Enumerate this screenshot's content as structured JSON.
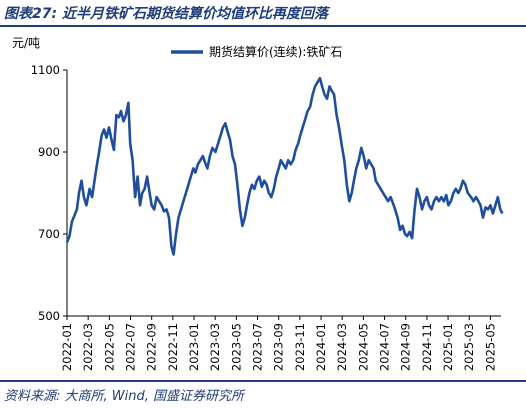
{
  "header": {
    "title": "图表27:  近半月铁矿石期货结算价均值环比再度回落"
  },
  "footer": {
    "source": "资料来源:  大商所,  Wind,  国盛证券研究所"
  },
  "colors": {
    "series": "#1f4e9c",
    "rule": "#1f3d7a",
    "text": "#000000"
  },
  "chart_data": {
    "type": "line",
    "title": "",
    "ylabel": "元/吨",
    "xlabel": "",
    "ylim": [
      500,
      1100
    ],
    "yticks": [
      500,
      700,
      900,
      1100
    ],
    "xlim": [
      "2022-01",
      "2025-06"
    ],
    "xticks": [
      "2022-01",
      "2022-03",
      "2022-05",
      "2022-07",
      "2022-09",
      "2022-11",
      "2023-01",
      "2023-03",
      "2023-05",
      "2023-07",
      "2023-09",
      "2023-11",
      "2024-01",
      "2024-03",
      "2024-05",
      "2024-07",
      "2024-09",
      "2024-11",
      "2025-01",
      "2025-03",
      "2025-05"
    ],
    "legend": "top-center",
    "series": [
      {
        "name": "期货结算价(连续):铁矿石",
        "points": [
          [
            "2022-01-01",
            680
          ],
          [
            "2022-01-08",
            695
          ],
          [
            "2022-01-15",
            730
          ],
          [
            "2022-01-22",
            745
          ],
          [
            "2022-01-29",
            760
          ],
          [
            "2022-02-05",
            800
          ],
          [
            "2022-02-12",
            830
          ],
          [
            "2022-02-19",
            790
          ],
          [
            "2022-02-26",
            770
          ],
          [
            "2022-03-05",
            810
          ],
          [
            "2022-03-12",
            790
          ],
          [
            "2022-03-19",
            830
          ],
          [
            "2022-03-26",
            870
          ],
          [
            "2022-04-02",
            900
          ],
          [
            "2022-04-09",
            940
          ],
          [
            "2022-04-16",
            955
          ],
          [
            "2022-04-23",
            935
          ],
          [
            "2022-04-30",
            960
          ],
          [
            "2022-05-07",
            930
          ],
          [
            "2022-05-14",
            905
          ],
          [
            "2022-05-21",
            990
          ],
          [
            "2022-05-28",
            985
          ],
          [
            "2022-06-04",
            1000
          ],
          [
            "2022-06-11",
            975
          ],
          [
            "2022-06-18",
            990
          ],
          [
            "2022-06-25",
            1020
          ],
          [
            "2022-06-30",
            920
          ],
          [
            "2022-07-07",
            880
          ],
          [
            "2022-07-14",
            790
          ],
          [
            "2022-07-21",
            840
          ],
          [
            "2022-07-28",
            770
          ],
          [
            "2022-08-04",
            800
          ],
          [
            "2022-08-11",
            810
          ],
          [
            "2022-08-18",
            840
          ],
          [
            "2022-08-25",
            800
          ],
          [
            "2022-09-01",
            770
          ],
          [
            "2022-09-08",
            760
          ],
          [
            "2022-09-15",
            790
          ],
          [
            "2022-09-22",
            780
          ],
          [
            "2022-09-29",
            770
          ],
          [
            "2022-10-06",
            755
          ],
          [
            "2022-10-13",
            760
          ],
          [
            "2022-10-20",
            740
          ],
          [
            "2022-10-27",
            670
          ],
          [
            "2022-11-03",
            650
          ],
          [
            "2022-11-10",
            700
          ],
          [
            "2022-11-17",
            740
          ],
          [
            "2022-11-24",
            760
          ],
          [
            "2022-12-01",
            780
          ],
          [
            "2022-12-08",
            800
          ],
          [
            "2022-12-15",
            820
          ],
          [
            "2022-12-22",
            840
          ],
          [
            "2022-12-29",
            860
          ],
          [
            "2023-01-05",
            850
          ],
          [
            "2023-01-12",
            870
          ],
          [
            "2023-01-19",
            880
          ],
          [
            "2023-01-26",
            890
          ],
          [
            "2023-02-02",
            875
          ],
          [
            "2023-02-09",
            860
          ],
          [
            "2023-02-16",
            890
          ],
          [
            "2023-02-23",
            910
          ],
          [
            "2023-03-02",
            900
          ],
          [
            "2023-03-09",
            920
          ],
          [
            "2023-03-16",
            940
          ],
          [
            "2023-03-23",
            960
          ],
          [
            "2023-03-30",
            970
          ],
          [
            "2023-04-06",
            950
          ],
          [
            "2023-04-13",
            930
          ],
          [
            "2023-04-20",
            890
          ],
          [
            "2023-04-27",
            870
          ],
          [
            "2023-05-04",
            820
          ],
          [
            "2023-05-11",
            760
          ],
          [
            "2023-05-18",
            720
          ],
          [
            "2023-05-25",
            740
          ],
          [
            "2023-06-01",
            770
          ],
          [
            "2023-06-08",
            800
          ],
          [
            "2023-06-15",
            820
          ],
          [
            "2023-06-22",
            810
          ],
          [
            "2023-06-29",
            830
          ],
          [
            "2023-07-06",
            840
          ],
          [
            "2023-07-13",
            815
          ],
          [
            "2023-07-20",
            830
          ],
          [
            "2023-07-27",
            820
          ],
          [
            "2023-08-03",
            800
          ],
          [
            "2023-08-10",
            790
          ],
          [
            "2023-08-17",
            810
          ],
          [
            "2023-08-24",
            840
          ],
          [
            "2023-08-31",
            860
          ],
          [
            "2023-09-07",
            880
          ],
          [
            "2023-09-14",
            870
          ],
          [
            "2023-09-21",
            860
          ],
          [
            "2023-09-28",
            880
          ],
          [
            "2023-10-05",
            870
          ],
          [
            "2023-10-12",
            880
          ],
          [
            "2023-10-19",
            905
          ],
          [
            "2023-10-26",
            920
          ],
          [
            "2023-11-02",
            940
          ],
          [
            "2023-11-09",
            960
          ],
          [
            "2023-11-16",
            980
          ],
          [
            "2023-11-23",
            1000
          ],
          [
            "2023-11-30",
            1010
          ],
          [
            "2023-12-07",
            1040
          ],
          [
            "2023-12-14",
            1060
          ],
          [
            "2023-12-21",
            1070
          ],
          [
            "2023-12-28",
            1080
          ],
          [
            "2024-01-04",
            1060
          ],
          [
            "2024-01-11",
            1040
          ],
          [
            "2024-01-18",
            1030
          ],
          [
            "2024-01-25",
            1060
          ],
          [
            "2024-02-01",
            1050
          ],
          [
            "2024-02-08",
            1040
          ],
          [
            "2024-02-15",
            990
          ],
          [
            "2024-02-22",
            960
          ],
          [
            "2024-02-29",
            920
          ],
          [
            "2024-03-07",
            880
          ],
          [
            "2024-03-14",
            820
          ],
          [
            "2024-03-21",
            780
          ],
          [
            "2024-03-28",
            800
          ],
          [
            "2024-04-04",
            830
          ],
          [
            "2024-04-11",
            860
          ],
          [
            "2024-04-18",
            880
          ],
          [
            "2024-04-25",
            910
          ],
          [
            "2024-05-02",
            890
          ],
          [
            "2024-05-09",
            860
          ],
          [
            "2024-05-16",
            880
          ],
          [
            "2024-05-23",
            870
          ],
          [
            "2024-05-30",
            860
          ],
          [
            "2024-06-06",
            830
          ],
          [
            "2024-06-13",
            820
          ],
          [
            "2024-06-20",
            810
          ],
          [
            "2024-06-27",
            800
          ],
          [
            "2024-07-04",
            790
          ],
          [
            "2024-07-11",
            780
          ],
          [
            "2024-07-18",
            790
          ],
          [
            "2024-07-25",
            775
          ],
          [
            "2024-08-01",
            760
          ],
          [
            "2024-08-08",
            740
          ],
          [
            "2024-08-15",
            710
          ],
          [
            "2024-08-22",
            720
          ],
          [
            "2024-08-29",
            700
          ],
          [
            "2024-09-05",
            695
          ],
          [
            "2024-09-12",
            705
          ],
          [
            "2024-09-19",
            690
          ],
          [
            "2024-09-26",
            760
          ],
          [
            "2024-10-03",
            810
          ],
          [
            "2024-10-10",
            790
          ],
          [
            "2024-10-17",
            760
          ],
          [
            "2024-10-24",
            780
          ],
          [
            "2024-10-31",
            790
          ],
          [
            "2024-11-07",
            770
          ],
          [
            "2024-11-14",
            760
          ],
          [
            "2024-11-21",
            780
          ],
          [
            "2024-11-28",
            790
          ],
          [
            "2024-12-05",
            780
          ],
          [
            "2024-12-12",
            790
          ],
          [
            "2024-12-19",
            780
          ],
          [
            "2024-12-26",
            795
          ],
          [
            "2025-01-02",
            770
          ],
          [
            "2025-01-09",
            780
          ],
          [
            "2025-01-16",
            800
          ],
          [
            "2025-01-23",
            810
          ],
          [
            "2025-01-30",
            800
          ],
          [
            "2025-02-06",
            810
          ],
          [
            "2025-02-13",
            830
          ],
          [
            "2025-02-20",
            820
          ],
          [
            "2025-02-27",
            800
          ],
          [
            "2025-03-06",
            790
          ],
          [
            "2025-03-13",
            780
          ],
          [
            "2025-03-20",
            790
          ],
          [
            "2025-03-27",
            780
          ],
          [
            "2025-04-03",
            770
          ],
          [
            "2025-04-10",
            740
          ],
          [
            "2025-04-17",
            765
          ],
          [
            "2025-04-24",
            760
          ],
          [
            "2025-05-01",
            770
          ],
          [
            "2025-05-08",
            750
          ],
          [
            "2025-05-15",
            770
          ],
          [
            "2025-05-22",
            790
          ],
          [
            "2025-05-29",
            760
          ],
          [
            "2025-06-05",
            750
          ]
        ]
      }
    ]
  }
}
